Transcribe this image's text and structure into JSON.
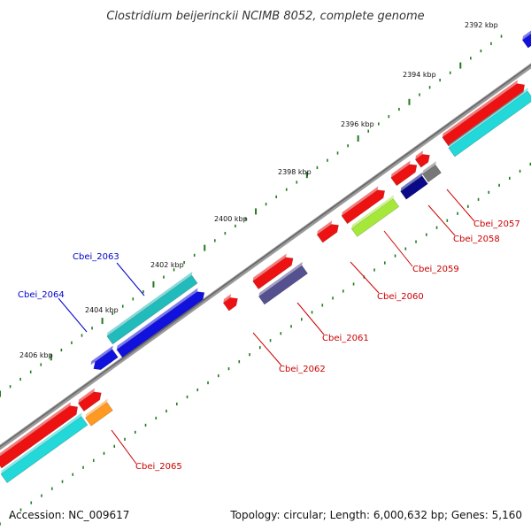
{
  "title": "Clostridium beijerinckii NCIMB 8052, complete genome",
  "footer": {
    "accession": "Accession: NC_009617",
    "summary": "Topology: circular; Length: 6,000,632 bp; Genes: 5,160"
  },
  "scale_labels": [
    "2392 kbp",
    "2394 kbp",
    "2396 kbp",
    "2398 kbp",
    "2400 kbp",
    "2402 kbp",
    "2404 kbp",
    "2406 kbp"
  ],
  "gene_labels": [
    {
      "text": "Cbei_2057",
      "color": "#cc0000"
    },
    {
      "text": "Cbei_2058",
      "color": "#cc0000"
    },
    {
      "text": "Cbei_2059",
      "color": "#cc0000"
    },
    {
      "text": "Cbei_2060",
      "color": "#cc0000"
    },
    {
      "text": "Cbei_2061",
      "color": "#cc0000"
    },
    {
      "text": "Cbei_2062",
      "color": "#cc0000"
    },
    {
      "text": "Cbei_2063",
      "color": "#0000cc"
    },
    {
      "text": "Cbei_2064",
      "color": "#0000cc"
    },
    {
      "text": "Cbei_2065",
      "color": "#cc0000"
    }
  ],
  "colors": {
    "backbone": "#7a7a7a",
    "tick": "#1f7a1f",
    "red_feature": "#ee1111",
    "cyan_feature": "#22d8d8",
    "teal_feature": "#22bbbb",
    "blue_feature": "#1111dd",
    "navy_feature": "#0a0a88",
    "slate_feature": "#55508f",
    "lime_feature": "#a6e83a",
    "orange_feature": "#ff9922",
    "gray_feature": "#777777"
  }
}
